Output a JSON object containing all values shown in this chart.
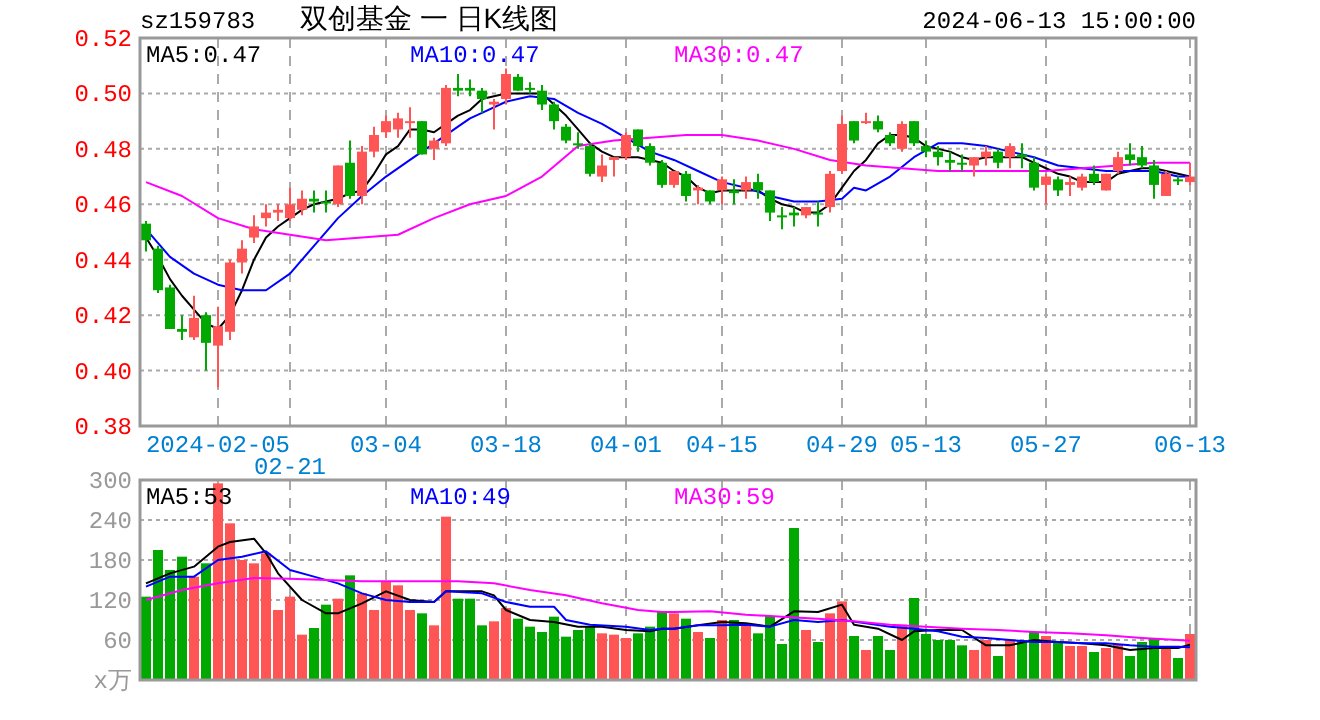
{
  "chart_data": [
    {
      "type": "candlestick",
      "title": "双创基金 一 日K线图",
      "annotations": [
        "sz159783",
        "2024-06-13 15:00:00"
      ],
      "categories": [
        null,
        null,
        null,
        null,
        null,
        null,
        "2024-02-05",
        null,
        null,
        null,
        null,
        null,
        "02-21",
        null,
        null,
        null,
        null,
        null,
        null,
        null,
        "03-04",
        null,
        null,
        null,
        null,
        null,
        null,
        null,
        null,
        null,
        "03-18",
        null,
        null,
        null,
        null,
        null,
        null,
        null,
        null,
        null,
        "04-01",
        null,
        null,
        null,
        null,
        null,
        null,
        null,
        "04-15",
        null,
        null,
        null,
        null,
        null,
        null,
        null,
        null,
        null,
        "04-29",
        null,
        null,
        null,
        null,
        null,
        null,
        "05-13",
        null,
        null,
        null,
        null,
        null,
        null,
        null,
        null,
        null,
        "05-27",
        null,
        null,
        null,
        null,
        null,
        null,
        null,
        null,
        null,
        null,
        null,
        "06-13"
      ],
      "ohlc": [
        [
          0.453,
          0.454,
          0.443,
          0.447
        ],
        [
          0.444,
          0.445,
          0.428,
          0.429
        ],
        [
          0.43,
          0.431,
          0.415,
          0.415
        ],
        [
          0.415,
          0.42,
          0.411,
          0.414
        ],
        [
          0.412,
          0.427,
          0.411,
          0.419
        ],
        [
          0.42,
          0.421,
          0.4,
          0.41
        ],
        [
          0.409,
          0.423,
          0.394,
          0.416
        ],
        [
          0.414,
          0.44,
          0.411,
          0.439
        ],
        [
          0.439,
          0.447,
          0.435,
          0.444
        ],
        [
          0.448,
          0.456,
          0.446,
          0.452
        ],
        [
          0.455,
          0.46,
          0.452,
          0.457
        ],
        [
          0.457,
          0.46,
          0.454,
          0.458
        ],
        [
          0.455,
          0.466,
          0.454,
          0.46
        ],
        [
          0.458,
          0.465,
          0.456,
          0.462
        ],
        [
          0.462,
          0.465,
          0.457,
          0.461
        ],
        [
          0.461,
          0.465,
          0.457,
          0.461
        ],
        [
          0.46,
          0.474,
          0.459,
          0.474
        ],
        [
          0.475,
          0.483,
          0.462,
          0.463
        ],
        [
          0.463,
          0.481,
          0.46,
          0.479
        ],
        [
          0.479,
          0.488,
          0.477,
          0.485
        ],
        [
          0.486,
          0.492,
          0.484,
          0.49
        ],
        [
          0.487,
          0.493,
          0.484,
          0.491
        ],
        [
          0.49,
          0.495,
          0.484,
          0.49
        ],
        [
          0.49,
          0.49,
          0.478,
          0.478
        ],
        [
          0.48,
          0.484,
          0.476,
          0.483
        ],
        [
          0.482,
          0.503,
          0.481,
          0.502
        ],
        [
          0.502,
          0.507,
          0.499,
          0.501
        ],
        [
          0.502,
          0.505,
          0.499,
          0.501
        ],
        [
          0.501,
          0.502,
          0.493,
          0.498
        ],
        [
          0.496,
          0.498,
          0.487,
          0.497
        ],
        [
          0.498,
          0.509,
          0.496,
          0.507
        ],
        [
          0.506,
          0.507,
          0.501,
          0.501
        ],
        [
          0.502,
          0.504,
          0.5,
          0.502
        ],
        [
          0.501,
          0.503,
          0.494,
          0.496
        ],
        [
          0.496,
          0.497,
          0.487,
          0.49
        ],
        [
          0.488,
          0.489,
          0.482,
          0.483
        ],
        [
          0.482,
          0.486,
          0.48,
          0.482
        ],
        [
          0.481,
          0.482,
          0.47,
          0.471
        ],
        [
          0.47,
          0.478,
          0.468,
          0.474
        ],
        [
          0.476,
          0.477,
          0.47,
          0.477
        ],
        [
          0.477,
          0.486,
          0.476,
          0.485
        ],
        [
          0.487,
          0.487,
          0.479,
          0.481
        ],
        [
          0.481,
          0.482,
          0.474,
          0.475
        ],
        [
          0.475,
          0.476,
          0.466,
          0.467
        ],
        [
          0.467,
          0.472,
          0.466,
          0.472
        ],
        [
          0.471,
          0.472,
          0.461,
          0.463
        ],
        [
          0.465,
          0.467,
          0.46,
          0.466
        ],
        [
          0.465,
          0.465,
          0.46,
          0.461
        ],
        [
          0.465,
          0.47,
          0.46,
          0.469
        ],
        [
          0.465,
          0.469,
          0.46,
          0.464
        ],
        [
          0.465,
          0.47,
          0.462,
          0.468
        ],
        [
          0.468,
          0.471,
          0.462,
          0.465
        ],
        [
          0.465,
          0.465,
          0.454,
          0.457
        ],
        [
          0.456,
          0.459,
          0.451,
          0.456
        ],
        [
          0.457,
          0.459,
          0.452,
          0.456
        ],
        [
          0.456,
          0.459,
          0.455,
          0.459
        ],
        [
          0.457,
          0.461,
          0.452,
          0.457
        ],
        [
          0.459,
          0.472,
          0.457,
          0.471
        ],
        [
          0.472,
          0.492,
          0.471,
          0.489
        ],
        [
          0.49,
          0.49,
          0.482,
          0.483
        ],
        [
          0.49,
          0.493,
          0.489,
          0.49
        ],
        [
          0.49,
          0.492,
          0.486,
          0.487
        ],
        [
          0.485,
          0.486,
          0.481,
          0.482
        ],
        [
          0.48,
          0.49,
          0.479,
          0.489
        ],
        [
          0.49,
          0.49,
          0.481,
          0.482
        ],
        [
          0.481,
          0.483,
          0.477,
          0.479
        ],
        [
          0.479,
          0.481,
          0.474,
          0.477
        ],
        [
          0.476,
          0.479,
          0.472,
          0.475
        ],
        [
          0.475,
          0.478,
          0.472,
          0.475
        ],
        [
          0.474,
          0.477,
          0.47,
          0.477
        ],
        [
          0.477,
          0.481,
          0.474,
          0.479
        ],
        [
          0.479,
          0.48,
          0.473,
          0.475
        ],
        [
          0.477,
          0.482,
          0.473,
          0.481
        ],
        [
          0.478,
          0.482,
          0.473,
          0.477
        ],
        [
          0.475,
          0.477,
          0.465,
          0.466
        ],
        [
          0.467,
          0.471,
          0.46,
          0.47
        ],
        [
          0.469,
          0.47,
          0.463,
          0.465
        ],
        [
          0.467,
          0.47,
          0.463,
          0.468
        ],
        [
          0.466,
          0.471,
          0.465,
          0.47
        ],
        [
          0.471,
          0.474,
          0.467,
          0.468
        ],
        [
          0.465,
          0.471,
          0.465,
          0.471
        ],
        [
          0.472,
          0.479,
          0.471,
          0.477
        ],
        [
          0.478,
          0.482,
          0.474,
          0.476
        ],
        [
          0.477,
          0.481,
          0.473,
          0.474
        ],
        [
          0.474,
          0.476,
          0.462,
          0.467
        ],
        [
          0.463,
          0.472,
          0.463,
          0.471
        ],
        [
          0.469,
          0.47,
          0.467,
          0.469
        ],
        [
          0.468,
          0.475,
          0.467,
          0.47
        ]
      ],
      "colors": [
        "#00a800",
        "#00a800",
        "#00a800",
        "#00a800",
        "#ff5555",
        "#00a800",
        "#ff5555",
        "#ff5555",
        "#ff5555",
        "#ff5555",
        "#ff5555",
        "#ff5555",
        "#ff5555",
        "#ff5555",
        "#00a800",
        "#00a800",
        "#ff5555",
        "#00a800",
        "#ff5555",
        "#ff5555",
        "#ff5555",
        "#ff5555",
        "#ff5555",
        "#00a800",
        "#ff5555",
        "#ff5555",
        "#00a800",
        "#00a800",
        "#00a800",
        "#ff5555",
        "#ff5555",
        "#00a800",
        "#00a800",
        "#00a800",
        "#00a800",
        "#00a800",
        "#00a800",
        "#00a800",
        "#ff5555",
        "#ff5555",
        "#ff5555",
        "#00a800",
        "#00a800",
        "#00a800",
        "#ff5555",
        "#00a800",
        "#ff5555",
        "#00a800",
        "#ff5555",
        "#00a800",
        "#ff5555",
        "#00a800",
        "#00a800",
        "#00a800",
        "#00a800",
        "#ff5555",
        "#00a800",
        "#ff5555",
        "#ff5555",
        "#00a800",
        "#ff5555",
        "#00a800",
        "#00a800",
        "#ff5555",
        "#00a800",
        "#00a800",
        "#00a800",
        "#00a800",
        "#00a800",
        "#ff5555",
        "#ff5555",
        "#00a800",
        "#ff5555",
        "#00a800",
        "#00a800",
        "#ff5555",
        "#00a800",
        "#ff5555",
        "#ff5555",
        "#00a800",
        "#ff5555",
        "#ff5555",
        "#00a800",
        "#00a800",
        "#00a800",
        "#ff5555",
        "#00a800",
        "#ff5555"
      ],
      "series": [
        {
          "type": "line",
          "name": "MA5:0.47",
          "color": "#000000",
          "values": [
            0.448,
            0.441,
            0.433,
            0.427,
            0.422,
            0.417,
            0.415,
            0.42,
            0.429,
            0.44,
            0.448,
            0.452,
            0.455,
            0.458,
            0.46,
            0.461,
            0.462,
            0.464,
            0.465,
            0.471,
            0.478,
            0.481,
            0.487,
            0.487,
            0.486,
            0.489,
            0.492,
            0.494,
            0.498,
            0.499,
            0.5,
            0.5,
            0.5,
            0.5,
            0.496,
            0.492,
            0.487,
            0.482,
            0.479,
            0.477,
            0.477,
            0.477,
            0.476,
            0.475,
            0.472,
            0.47,
            0.466,
            0.464,
            0.465,
            0.465,
            0.465,
            0.465,
            0.462,
            0.46,
            0.459,
            0.457,
            0.457,
            0.46,
            0.466,
            0.472,
            0.476,
            0.482,
            0.485,
            0.485,
            0.484,
            0.481,
            0.48,
            0.479,
            0.477,
            0.476,
            0.477,
            0.477,
            0.477,
            0.477,
            0.475,
            0.473,
            0.471,
            0.47,
            0.468,
            0.468,
            0.468,
            0.471,
            0.472,
            0.473,
            0.473,
            0.472,
            0.471,
            0.47
          ]
        },
        {
          "type": "line",
          "name": "MA10:0.47",
          "color": "#0000ff",
          "values": [
            0.451,
            null,
            0.441,
            null,
            0.435,
            null,
            0.431,
            null,
            0.429,
            null,
            0.429,
            null,
            0.435,
            null,
            0.445,
            null,
            0.455,
            null,
            0.463,
            null,
            0.47,
            null,
            0.476,
            null,
            0.482,
            null,
            0.488,
            0.491,
            0.493,
            null,
            0.497,
            null,
            0.499,
            null,
            0.498,
            null,
            0.493,
            null,
            0.489,
            null,
            0.484,
            null,
            0.479,
            null,
            0.476,
            null,
            0.472,
            null,
            0.468,
            null,
            0.466,
            null,
            0.463,
            null,
            0.461,
            null,
            0.461,
            null,
            0.462,
            0.466,
            0.465,
            null,
            0.47,
            null,
            0.477,
            null,
            0.482,
            null,
            0.482,
            null,
            0.481,
            null,
            0.479,
            null,
            0.477,
            null,
            0.474,
            null,
            0.473,
            null,
            0.472,
            null,
            0.472,
            null,
            0.472,
            null,
            0.47,
            0.47
          ]
        },
        {
          "type": "line",
          "name": "MA30:0.47",
          "color": "#ff00ff",
          "values": [
            0.468,
            null,
            null,
            0.463,
            null,
            null,
            0.455,
            null,
            null,
            0.451,
            null,
            null,
            0.449,
            null,
            null,
            0.447,
            null,
            null,
            0.448,
            null,
            null,
            0.449,
            null,
            null,
            0.455,
            null,
            null,
            0.46,
            null,
            null,
            0.463,
            null,
            null,
            0.47,
            null,
            null,
            0.481,
            null,
            null,
            0.483,
            null,
            null,
            0.484,
            null,
            null,
            0.485,
            null,
            null,
            0.485,
            null,
            null,
            0.483,
            null,
            null,
            0.48,
            null,
            null,
            0.476,
            null,
            null,
            0.474,
            null,
            null,
            0.473,
            null,
            null,
            0.472,
            null,
            null,
            0.472,
            null,
            null,
            0.472,
            null,
            null,
            0.472,
            null,
            null,
            0.473,
            null,
            null,
            0.474,
            null,
            null,
            0.475,
            null,
            null,
            0.475
          ]
        }
      ],
      "ylim": [
        0.38,
        0.52
      ],
      "yticks": [
        {
          "value": 0.38,
          "label": "0.38"
        },
        {
          "value": 0.4,
          "label": "0.40"
        },
        {
          "value": 0.42,
          "label": "0.42"
        },
        {
          "value": 0.44,
          "label": "0.44"
        },
        {
          "value": 0.46,
          "label": "0.46"
        },
        {
          "value": 0.48,
          "label": "0.48"
        },
        {
          "value": 0.5,
          "label": "0.50"
        },
        {
          "value": 0.52,
          "label": "0.52"
        }
      ],
      "grid": true,
      "legend": "top left"
    },
    {
      "type": "bar",
      "categories": [
        null,
        null,
        null,
        null,
        null,
        null,
        null,
        null,
        null,
        null,
        null,
        null,
        null,
        null,
        null,
        null,
        null,
        null,
        null,
        null,
        null,
        null,
        null,
        null,
        null,
        null,
        null,
        null,
        null,
        null,
        null,
        null,
        null,
        null,
        null,
        null,
        null,
        null,
        null,
        null,
        null,
        null,
        null,
        null,
        null,
        null,
        null,
        null,
        null,
        null,
        null,
        null,
        null,
        null,
        null,
        null,
        null,
        null,
        null,
        null,
        null,
        null,
        null,
        null,
        null,
        null,
        null,
        null,
        null,
        null,
        null,
        null,
        null,
        null,
        null,
        null,
        null,
        null,
        null,
        null,
        null,
        null,
        null,
        null,
        null,
        null,
        null,
        null
      ],
      "series": [
        {
          "type": "bar",
          "values": [
            125,
            195,
            165,
            185,
            155,
            175,
            295,
            235,
            180,
            175,
            190,
            105,
            125,
            68,
            78,
            113,
            122,
            157,
            130,
            105,
            148,
            142,
            105,
            100,
            82,
            245,
            122,
            122,
            82,
            88,
            108,
            92,
            80,
            72,
            95,
            65,
            75,
            80,
            70,
            68,
            63,
            70,
            80,
            102,
            100,
            92,
            72,
            63,
            90,
            90,
            82,
            70,
            96,
            54,
            228,
            75,
            57,
            100,
            118,
            66,
            45,
            66,
            45,
            83,
            123,
            69,
            60,
            60,
            52,
            45,
            60,
            36,
            60,
            60,
            72,
            66,
            57,
            51,
            51,
            42,
            48,
            54,
            36,
            57,
            63,
            51,
            33,
            69
          ],
          "colors": [
            "#00a800",
            "#00a800",
            "#00a800",
            "#00a800",
            "#ff5555",
            "#00a800",
            "#ff5555",
            "#ff5555",
            "#ff5555",
            "#ff5555",
            "#ff5555",
            "#ff5555",
            "#ff5555",
            "#ff5555",
            "#00a800",
            "#00a800",
            "#ff5555",
            "#00a800",
            "#ff5555",
            "#ff5555",
            "#ff5555",
            "#ff5555",
            "#ff5555",
            "#00a800",
            "#ff5555",
            "#ff5555",
            "#00a800",
            "#00a800",
            "#00a800",
            "#ff5555",
            "#ff5555",
            "#00a800",
            "#00a800",
            "#00a800",
            "#00a800",
            "#00a800",
            "#00a800",
            "#00a800",
            "#ff5555",
            "#ff5555",
            "#ff5555",
            "#00a800",
            "#00a800",
            "#00a800",
            "#ff5555",
            "#00a800",
            "#ff5555",
            "#00a800",
            "#ff5555",
            "#00a800",
            "#ff5555",
            "#00a800",
            "#00a800",
            "#00a800",
            "#00a800",
            "#ff5555",
            "#00a800",
            "#ff5555",
            "#ff5555",
            "#00a800",
            "#ff5555",
            "#00a800",
            "#00a800",
            "#ff5555",
            "#00a800",
            "#00a800",
            "#00a800",
            "#00a800",
            "#00a800",
            "#ff5555",
            "#ff5555",
            "#00a800",
            "#ff5555",
            "#00a800",
            "#00a800",
            "#ff5555",
            "#00a800",
            "#ff5555",
            "#ff5555",
            "#00a800",
            "#ff5555",
            "#ff5555",
            "#00a800",
            "#00a800",
            "#00a800",
            "#ff5555",
            "#00a800",
            "#ff5555"
          ]
        },
        {
          "type": "line",
          "name": "MA5:53",
          "color": "#000000",
          "values": [
            145,
            null,
            160,
            null,
            170,
            null,
            200,
            207,
            null,
            212,
            190,
            160,
            null,
            120,
            null,
            100,
            100,
            null,
            115,
            null,
            133,
            null,
            120,
            null,
            117,
            133,
            null,
            null,
            133,
            127,
            105,
            null,
            90,
            null,
            87,
            null,
            80,
            null,
            80,
            null,
            75,
            null,
            73,
            77,
            77,
            null,
            82,
            null,
            87,
            null,
            85,
            null,
            80,
            null,
            103,
            null,
            102,
            null,
            113,
            83,
            null,
            77,
            null,
            60,
            73,
            null,
            75,
            null,
            75,
            null,
            52,
            null,
            52,
            null,
            60,
            null,
            57,
            null,
            55,
            null,
            52,
            null,
            45,
            null,
            48,
            null,
            48,
            53
          ]
        },
        {
          "type": "line",
          "name": "MA10:49",
          "color": "#0000ff",
          "values": [
            140,
            null,
            155,
            null,
            155,
            null,
            180,
            null,
            185,
            null,
            193,
            null,
            165,
            null,
            155,
            null,
            145,
            null,
            130,
            null,
            120,
            null,
            117,
            null,
            117,
            133,
            null,
            null,
            130,
            null,
            117,
            null,
            110,
            null,
            110,
            90,
            null,
            83,
            null,
            null,
            80,
            null,
            75,
            77,
            77,
            null,
            82,
            null,
            82,
            null,
            83,
            null,
            80,
            null,
            90,
            null,
            87,
            null,
            90,
            null,
            85,
            null,
            80,
            null,
            77,
            null,
            73,
            null,
            65,
            null,
            63,
            null,
            60,
            null,
            57,
            null,
            57,
            null,
            55,
            null,
            55,
            null,
            52,
            null,
            50,
            null,
            50,
            49
          ]
        },
        {
          "type": "line",
          "name": "MA30:59",
          "color": "#ff00ff",
          "values": [
            120,
            null,
            null,
            135,
            null,
            null,
            145,
            null,
            null,
            153,
            null,
            null,
            152,
            null,
            null,
            150,
            null,
            null,
            148,
            null,
            null,
            148,
            null,
            null,
            148,
            null,
            148,
            null,
            null,
            145,
            null,
            null,
            135,
            null,
            null,
            127,
            null,
            null,
            115,
            null,
            null,
            105,
            null,
            102,
            102,
            null,
            null,
            103,
            null,
            null,
            98,
            null,
            null,
            95,
            null,
            null,
            92,
            null,
            null,
            88,
            null,
            null,
            83,
            null,
            null,
            80,
            null,
            null,
            77,
            null,
            null,
            75,
            null,
            null,
            72,
            null,
            null,
            70,
            null,
            null,
            67,
            null,
            null,
            63,
            null,
            null,
            60,
            59
          ]
        }
      ],
      "ylim": [
        0,
        300
      ],
      "yticks": [
        {
          "value": 0,
          "label": "x万"
        },
        60,
        120,
        180,
        240,
        300
      ],
      "grid": true,
      "legend": "top left",
      "tick_labels": "y"
    }
  ]
}
